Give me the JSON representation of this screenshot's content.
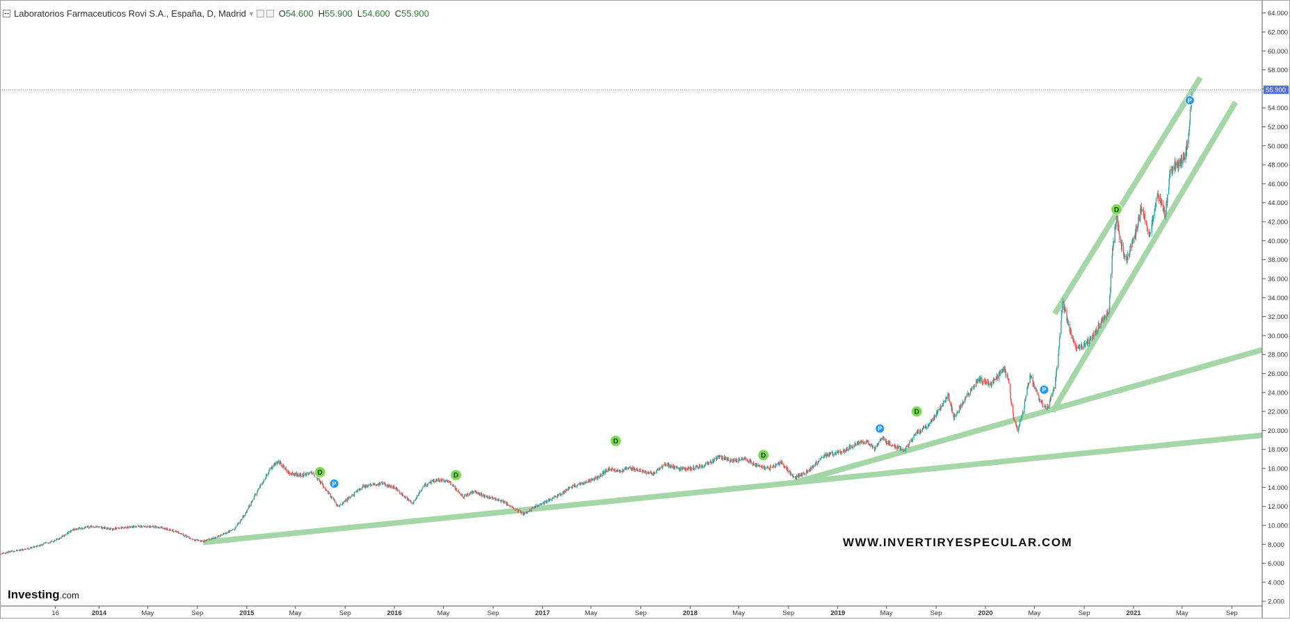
{
  "legend": {
    "instrument": "Laboratorios Farmaceuticos Rovi S.A., España, D, Madrid",
    "open_label": "O",
    "open": "54.600",
    "high_label": "H",
    "high": "55.900",
    "low_label": "L",
    "low": "54.600",
    "close_label": "C",
    "close": "55.900"
  },
  "logo": {
    "main": "Investing",
    "suffix": ".com"
  },
  "watermark": "WWW.INVERTIRYESPECULAR.COM",
  "colors": {
    "up": "#26a69a",
    "down": "#ef5350",
    "trendline": "#a5d6a7",
    "price_line": "#4f6fd9",
    "dividend": "#7ed957",
    "p_marker": "#2196f3"
  },
  "chart_data": {
    "type": "line",
    "title": "Laboratorios Farmaceuticos Rovi S.A., España, D, Madrid",
    "ylim": [
      1.5,
      65
    ],
    "xlim": [
      "2013-05-01",
      "2021-11-15"
    ],
    "grid": false,
    "current_price": "55.900",
    "y_ticks": [
      "2.000",
      "4.000",
      "6.000",
      "8.000",
      "10.000",
      "12.000",
      "14.000",
      "16.000",
      "18.000",
      "20.000",
      "22.000",
      "24.000",
      "26.000",
      "28.000",
      "30.000",
      "32.000",
      "34.000",
      "36.000",
      "38.000",
      "40.000",
      "42.000",
      "44.000",
      "46.000",
      "48.000",
      "50.000",
      "52.000",
      "54.000",
      "56.000",
      "58.000",
      "60.000",
      "62.000",
      "64.000"
    ],
    "x_ticks": [
      {
        "label": "16",
        "date": "2013-09-15"
      },
      {
        "label": "2014",
        "date": "2014-01-01"
      },
      {
        "label": "May",
        "date": "2014-05-01"
      },
      {
        "label": "Sep",
        "date": "2014-09-01"
      },
      {
        "label": "2015",
        "date": "2015-01-01"
      },
      {
        "label": "May",
        "date": "2015-05-01"
      },
      {
        "label": "Sep",
        "date": "2015-09-01"
      },
      {
        "label": "2016",
        "date": "2016-01-01"
      },
      {
        "label": "May",
        "date": "2016-05-01"
      },
      {
        "label": "Sep",
        "date": "2016-09-01"
      },
      {
        "label": "2017",
        "date": "2017-01-01"
      },
      {
        "label": "May",
        "date": "2017-05-01"
      },
      {
        "label": "Sep",
        "date": "2017-09-01"
      },
      {
        "label": "2018",
        "date": "2018-01-01"
      },
      {
        "label": "May",
        "date": "2018-05-01"
      },
      {
        "label": "Sep",
        "date": "2018-09-01"
      },
      {
        "label": "2019",
        "date": "2019-01-01"
      },
      {
        "label": "May",
        "date": "2019-05-01"
      },
      {
        "label": "Sep",
        "date": "2019-09-01"
      },
      {
        "label": "2020",
        "date": "2020-01-01"
      },
      {
        "label": "May",
        "date": "2020-05-01"
      },
      {
        "label": "Sep",
        "date": "2020-09-01"
      },
      {
        "label": "2021",
        "date": "2021-01-01"
      },
      {
        "label": "May",
        "date": "2021-05-01"
      },
      {
        "label": "Sep",
        "date": "2021-09-01"
      }
    ],
    "price": [
      [
        "2013-05-01",
        7.0
      ],
      [
        "2013-07-15",
        7.6
      ],
      [
        "2013-09-15",
        8.4
      ],
      [
        "2013-11-01",
        9.6
      ],
      [
        "2013-12-15",
        9.9
      ],
      [
        "2014-02-01",
        9.6
      ],
      [
        "2014-04-01",
        9.9
      ],
      [
        "2014-06-01",
        9.8
      ],
      [
        "2014-07-15",
        9.3
      ],
      [
        "2014-08-15",
        8.6
      ],
      [
        "2014-09-15",
        8.3
      ],
      [
        "2014-10-15",
        8.7
      ],
      [
        "2014-12-01",
        9.6
      ],
      [
        "2015-01-01",
        11.5
      ],
      [
        "2015-02-01",
        14.0
      ],
      [
        "2015-03-01",
        16.0
      ],
      [
        "2015-03-20",
        16.8
      ],
      [
        "2015-04-15",
        15.5
      ],
      [
        "2015-05-15",
        15.3
      ],
      [
        "2015-06-15",
        15.5
      ],
      [
        "2015-07-15",
        13.8
      ],
      [
        "2015-08-15",
        12.0
      ],
      [
        "2015-09-15",
        13.0
      ],
      [
        "2015-10-15",
        14.1
      ],
      [
        "2015-12-01",
        14.4
      ],
      [
        "2016-01-01",
        14.0
      ],
      [
        "2016-02-15",
        12.3
      ],
      [
        "2016-03-15",
        14.2
      ],
      [
        "2016-04-15",
        14.8
      ],
      [
        "2016-05-15",
        14.6
      ],
      [
        "2016-06-20",
        13.0
      ],
      [
        "2016-07-15",
        13.6
      ],
      [
        "2016-08-15",
        13.0
      ],
      [
        "2016-09-15",
        12.7
      ],
      [
        "2016-10-15",
        12.0
      ],
      [
        "2016-11-15",
        11.2
      ],
      [
        "2016-12-15",
        12.0
      ],
      [
        "2017-01-15",
        12.6
      ],
      [
        "2017-02-15",
        13.3
      ],
      [
        "2017-03-15",
        14.1
      ],
      [
        "2017-04-15",
        14.5
      ],
      [
        "2017-05-15",
        15.0
      ],
      [
        "2017-06-15",
        16.0
      ],
      [
        "2017-07-10",
        15.7
      ],
      [
        "2017-08-01",
        16.0
      ],
      [
        "2017-09-01",
        15.8
      ],
      [
        "2017-10-01",
        15.4
      ],
      [
        "2017-11-01",
        16.4
      ],
      [
        "2017-12-15",
        15.9
      ],
      [
        "2018-02-01",
        16.2
      ],
      [
        "2018-03-15",
        17.2
      ],
      [
        "2018-04-15",
        16.8
      ],
      [
        "2018-05-15",
        17.0
      ],
      [
        "2018-06-15",
        16.3
      ],
      [
        "2018-07-15",
        16.0
      ],
      [
        "2018-08-15",
        16.6
      ],
      [
        "2018-09-15",
        15.0
      ],
      [
        "2018-10-15",
        15.6
      ],
      [
        "2018-12-01",
        17.4
      ],
      [
        "2019-01-15",
        17.8
      ],
      [
        "2019-02-15",
        18.6
      ],
      [
        "2019-03-15",
        18.9
      ],
      [
        "2019-04-01",
        18.0
      ],
      [
        "2019-04-20",
        19.2
      ],
      [
        "2019-05-15",
        18.4
      ],
      [
        "2019-06-15",
        17.9
      ],
      [
        "2019-07-15",
        19.8
      ],
      [
        "2019-08-15",
        20.5
      ],
      [
        "2019-09-15",
        22.6
      ],
      [
        "2019-10-01",
        23.8
      ],
      [
        "2019-10-15",
        21.3
      ],
      [
        "2019-11-15",
        23.6
      ],
      [
        "2019-12-15",
        25.4
      ],
      [
        "2020-01-15",
        24.8
      ],
      [
        "2020-02-15",
        26.5
      ],
      [
        "2020-02-25",
        25.5
      ],
      [
        "2020-03-12",
        21.0
      ],
      [
        "2020-03-20",
        20.0
      ],
      [
        "2020-04-01",
        21.5
      ],
      [
        "2020-04-20",
        25.9
      ],
      [
        "2020-05-15",
        23.0
      ],
      [
        "2020-06-01",
        22.3
      ],
      [
        "2020-06-20",
        24.5
      ],
      [
        "2020-07-01",
        29.0
      ],
      [
        "2020-07-10",
        33.5
      ],
      [
        "2020-07-25",
        31.0
      ],
      [
        "2020-08-15",
        28.5
      ],
      [
        "2020-09-15",
        29.5
      ],
      [
        "2020-10-15",
        31.5
      ],
      [
        "2020-11-01",
        32.5
      ],
      [
        "2020-11-10",
        39.0
      ],
      [
        "2020-11-20",
        42.5
      ],
      [
        "2020-12-01",
        39.5
      ],
      [
        "2020-12-15",
        38.0
      ],
      [
        "2021-01-01",
        40.0
      ],
      [
        "2021-01-20",
        43.5
      ],
      [
        "2021-02-10",
        40.5
      ],
      [
        "2021-03-01",
        45.0
      ],
      [
        "2021-03-20",
        42.5
      ],
      [
        "2021-04-01",
        47.0
      ],
      [
        "2021-04-15",
        48.0
      ],
      [
        "2021-05-01",
        48.5
      ],
      [
        "2021-05-15",
        49.8
      ],
      [
        "2021-05-25",
        55.9
      ]
    ],
    "trendlines": [
      {
        "from": [
          "2014-09-15",
          8.2
        ],
        "to": [
          "2021-11-15",
          19.5
        ]
      },
      {
        "from": [
          "2018-09-15",
          14.5
        ],
        "to": [
          "2021-11-15",
          28.5
        ]
      },
      {
        "from": [
          "2020-06-15",
          22.0
        ],
        "to": [
          "2021-09-10",
          54.6
        ]
      },
      {
        "from": [
          "2020-06-20",
          32.3
        ],
        "to": [
          "2021-06-15",
          57.2
        ]
      }
    ],
    "events": [
      {
        "label": "D",
        "date": "2015-07-01",
        "price": 15.6
      },
      {
        "label": "P",
        "date": "2015-08-05",
        "price": 14.4
      },
      {
        "label": "D",
        "date": "2016-06-01",
        "price": 15.3
      },
      {
        "label": "D",
        "date": "2017-07-01",
        "price": 18.9
      },
      {
        "label": "D",
        "date": "2018-07-01",
        "price": 17.4
      },
      {
        "label": "P",
        "date": "2019-04-15",
        "price": 20.2
      },
      {
        "label": "D",
        "date": "2019-07-15",
        "price": 22.0
      },
      {
        "label": "P",
        "date": "2020-05-25",
        "price": 24.3
      },
      {
        "label": "D",
        "date": "2020-11-20",
        "price": 43.3
      },
      {
        "label": "P",
        "date": "2021-05-20",
        "price": 54.8
      }
    ]
  }
}
